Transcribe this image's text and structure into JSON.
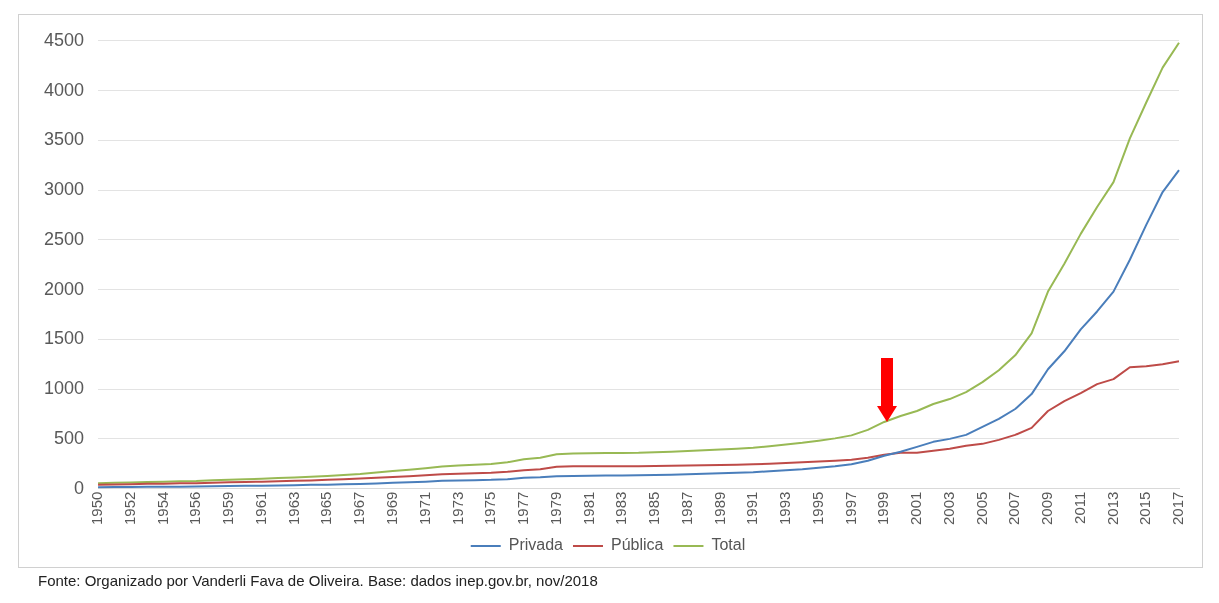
{
  "chart_data": {
    "type": "line",
    "categories": [
      "1950",
      null,
      "1952",
      null,
      "1954",
      null,
      "1956",
      null,
      "1959",
      null,
      "1961",
      null,
      "1963",
      null,
      "1965",
      null,
      "1967",
      null,
      "1969",
      null,
      "1971",
      null,
      "1973",
      null,
      "1975",
      null,
      "1977",
      null,
      "1979",
      null,
      "1981",
      null,
      "1983",
      null,
      "1985",
      null,
      "1987",
      null,
      "1989",
      null,
      "1991",
      null,
      "1993",
      null,
      "1995",
      null,
      "1997",
      null,
      "1999",
      null,
      "2001",
      null,
      "2003",
      null,
      "2005",
      null,
      "2007",
      null,
      "2009",
      null,
      "2011",
      null,
      "2013",
      null,
      "2015",
      null,
      "2017"
    ],
    "series": [
      {
        "name": "Privada",
        "color": "#4a7ebb",
        "values": [
          15,
          16,
          17,
          18,
          19,
          20,
          21,
          24,
          26,
          28,
          30,
          32,
          35,
          38,
          40,
          43,
          46,
          52,
          60,
          65,
          70,
          78,
          82,
          85,
          88,
          95,
          110,
          115,
          125,
          128,
          130,
          132,
          133,
          135,
          138,
          140,
          145,
          150,
          155,
          160,
          165,
          175,
          185,
          195,
          210,
          225,
          245,
          280,
          330,
          370,
          420,
          470,
          500,
          540,
          620,
          700,
          800,
          950,
          1200,
          1380,
          1600,
          1780,
          1980,
          2300,
          2650,
          2980,
          3200
        ]
      },
      {
        "name": "Pública",
        "color": "#be4b48",
        "values": [
          40,
          42,
          45,
          48,
          50,
          53,
          55,
          60,
          63,
          66,
          70,
          74,
          78,
          82,
          88,
          95,
          102,
          110,
          118,
          125,
          135,
          145,
          150,
          155,
          160,
          170,
          185,
          195,
          220,
          225,
          225,
          225,
          225,
          225,
          228,
          230,
          232,
          235,
          238,
          240,
          245,
          250,
          258,
          265,
          272,
          280,
          290,
          310,
          340,
          360,
          360,
          380,
          400,
          430,
          450,
          490,
          540,
          610,
          780,
          880,
          960,
          1050,
          1100,
          1220,
          1230,
          1250,
          1280
        ]
      },
      {
        "name": "Total",
        "color": "#98b954",
        "values": [
          55,
          58,
          62,
          66,
          69,
          73,
          76,
          84,
          89,
          94,
          100,
          106,
          113,
          120,
          128,
          138,
          148,
          162,
          178,
          190,
          205,
          223,
          232,
          240,
          248,
          265,
          295,
          310,
          345,
          353,
          355,
          357,
          358,
          360,
          366,
          370,
          377,
          385,
          393,
          400,
          410,
          425,
          443,
          460,
          482,
          505,
          535,
          590,
          670,
          730,
          780,
          850,
          900,
          970,
          1070,
          1190,
          1340,
          1560,
          1980,
          2260,
          2560,
          2830,
          3080,
          3520,
          3880,
          4230,
          4480
        ]
      }
    ],
    "ylim": [
      0,
      4500
    ],
    "yticks": [
      0,
      500,
      1000,
      1500,
      2000,
      2500,
      3000,
      3500,
      4000,
      4500
    ],
    "grid": "y",
    "legend": "bottom",
    "annotations": [
      "Fonte: Organizado por Vanderli Fava de Oliveira. Base: dados inep.gov.br, nov/2018"
    ]
  }
}
